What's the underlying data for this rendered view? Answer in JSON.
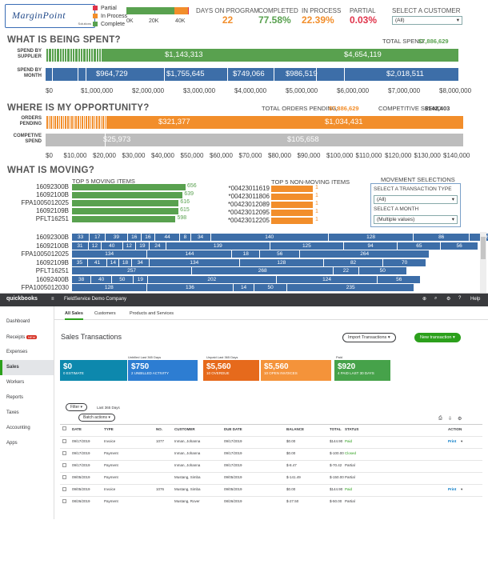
{
  "dashboard": {
    "logo": {
      "text": "MarginPoint",
      "sub": "Solutions"
    },
    "legend": [
      {
        "label": "Partial",
        "color": "#e0334a"
      },
      {
        "label": "In Process",
        "color": "#f28e2b"
      },
      {
        "label": "Complete",
        "color": "#59a14f"
      }
    ],
    "mini_axis": [
      "0K",
      "20K",
      "40K"
    ],
    "mini_progress": {
      "complete": 0.7758,
      "in_process": 0.2239,
      "partial": 0.0003
    },
    "kpis": [
      {
        "label": "DAYS ON PROGRAM",
        "value": "22",
        "color": "#f28e2b"
      },
      {
        "label": "COMPLETED",
        "value": "77.58%",
        "color": "#59a14f"
      },
      {
        "label": "IN PROCESS",
        "value": "22.39%",
        "color": "#f28e2b"
      },
      {
        "label": "PARTIAL",
        "value": "0.03%",
        "color": "#e0334a"
      }
    ],
    "customer_select": {
      "label": "SELECT A CUSTOMER",
      "value": "(All)"
    },
    "spent": {
      "title": "WHAT IS BEING SPENT?",
      "total_label": "TOTAL SPEND:",
      "total_value": "$7,886,629",
      "rows": [
        {
          "label": "SPEND BY SUPPLIER",
          "values": [
            "$1,143,313",
            "$4,654,119"
          ]
        },
        {
          "label": "SPEND BY MONTH",
          "values": [
            "$964,729",
            "$1,755,645",
            "$749,066",
            "$986,519",
            "$2,018,511"
          ]
        }
      ],
      "axis": [
        "$0",
        "$1,000,000",
        "$2,000,000",
        "$3,000,000",
        "$4,000,000",
        "$5,000,000",
        "$6,000,000",
        "$7,000,000",
        "$8,000,000"
      ]
    },
    "opportunity": {
      "title": "WHERE IS MY OPPORTUNITY?",
      "orders_label": "TOTAL ORDERS PENDING:",
      "orders_value": "$7,886,629",
      "competitive_label": "COMPETITIVE SPEND:",
      "competitive_value": "$142,403",
      "rows": [
        {
          "label": "ORDERS PENDING",
          "values": [
            "$321,377",
            "$1,034,431"
          ]
        },
        {
          "label": "COMPETIVE SPEND",
          "values": [
            "$25,973",
            "$105,658"
          ]
        }
      ],
      "axis": [
        "$0",
        "$10,000",
        "$20,000",
        "$30,000",
        "$40,000",
        "$50,000",
        "$60,000",
        "$70,000",
        "$80,000",
        "$90,000",
        "$100,000",
        "$110,000",
        "$120,000",
        "$130,000",
        "$140,000"
      ]
    },
    "moving": {
      "title": "WHAT IS MOVING?",
      "top5_title": "TOP 5 MOVING ITEMS",
      "top5": [
        {
          "item": "16092300B",
          "value": 656
        },
        {
          "item": "16092100B",
          "value": 639
        },
        {
          "item": "FPA1005012025",
          "value": 616
        },
        {
          "item": "16092109B",
          "value": 615
        },
        {
          "item": "PFLT16251",
          "value": 598
        }
      ],
      "nonmoving_title": "TOP 5 NON-MOVING ITEMS",
      "nonmoving": [
        {
          "item": "*00423011619",
          "value": 1
        },
        {
          "item": "*00423011806",
          "value": 1
        },
        {
          "item": "*00423012089",
          "value": 1
        },
        {
          "item": "*00423012095",
          "value": 1
        },
        {
          "item": "*00423012205",
          "value": 1
        }
      ],
      "selections_title": "MOVEMENT SELECTIONS",
      "transaction_label": "SELECT A TRANSACTION TYPE",
      "transaction_value": "(All)",
      "month_label": "SELECT A MONTH",
      "month_value": "(Multiple values)",
      "detail": [
        {
          "item": "16092300B",
          "segments": [
            "33",
            "17",
            "39",
            "16",
            "16",
            "44",
            "8",
            "34",
            "140",
            "128",
            "86",
            "65"
          ]
        },
        {
          "item": "16092100B",
          "segments": [
            "31",
            "12",
            "40",
            "12",
            "19",
            "24",
            "139",
            "125",
            "94",
            "65",
            "56"
          ]
        },
        {
          "item": "FPA1005012025",
          "segments": [
            "134",
            "144",
            "18",
            "56",
            "264"
          ]
        },
        {
          "item": "16092109B",
          "segments": [
            "35",
            "41",
            "14",
            "18",
            "34",
            "134",
            "128",
            "82",
            "70"
          ]
        },
        {
          "item": "PFLT16251",
          "segments": [
            "257",
            "268",
            "22",
            "50"
          ]
        },
        {
          "item": "16092400B",
          "segments": [
            "38",
            "40",
            "50",
            "19",
            "202",
            "124",
            "56"
          ]
        },
        {
          "item": "FPA1005012030",
          "segments": [
            "128",
            "136",
            "14",
            "50",
            "235"
          ]
        }
      ]
    }
  },
  "quickbooks": {
    "brand": "quickbooks",
    "company": "FieldService Demo Company",
    "help": "Help",
    "sidebar": [
      "Dashboard",
      "Receipts",
      "Expenses",
      "Sales",
      "Workers",
      "Reports",
      "Taxes",
      "Accounting",
      "Apps"
    ],
    "receipts_badge": "NEW",
    "tabs": [
      "All Sales",
      "Customers",
      "Products and Services"
    ],
    "page_title": "Sales Transactions",
    "import_button": "Import Transactions",
    "new_button": "New transaction",
    "tile_headers": {
      "unbilled": "Unbilled Last 365 Days",
      "unpaid": "Unpaid Last 365 Days",
      "paid": "Paid"
    },
    "tiles": [
      {
        "value": "$0",
        "caption": "0 ESTIMATE",
        "color": "#0d88ad"
      },
      {
        "value": "$750",
        "caption": "2 UNBILLED ACTIVITY",
        "color": "#2d7dd2"
      },
      {
        "value": "$5,560",
        "caption": "10 OVERDUE",
        "color": "#e66a1c"
      },
      {
        "value": "$5,560",
        "caption": "10 OPEN INVOICES",
        "color": "#f4933a"
      },
      {
        "value": "$920",
        "caption": "4 PAID LAST 30 DAYS",
        "color": "#46a24a"
      }
    ],
    "filter_label": "Filter",
    "filter_range": "Last 365 Days",
    "batch_label": "Batch actions",
    "columns": [
      "DATE",
      "TYPE",
      "NO.",
      "CUSTOMER",
      "DUE DATE",
      "BALANCE",
      "TOTAL",
      "STATUS",
      "ACTION"
    ],
    "rows": [
      {
        "date": "09/17/2019",
        "type": "Invoice",
        "no": "1077",
        "customer": "Inman, Johanna",
        "due": "09/17/2019",
        "balance": "$0.00",
        "total": "$144.90",
        "status": "Paid",
        "action": "Print"
      },
      {
        "date": "09/17/2019",
        "type": "Payment",
        "no": "",
        "customer": "Inman, Johanna",
        "due": "09/17/2019",
        "balance": "$0.00",
        "total": "$-100.00",
        "status": "Closed",
        "action": ""
      },
      {
        "date": "09/17/2019",
        "type": "Payment",
        "no": "",
        "customer": "Inman, Johanna",
        "due": "09/17/2019",
        "balance": "$-8.47",
        "total": "$-70.42",
        "status": "Partial",
        "action": ""
      },
      {
        "date": "09/05/2019",
        "type": "Payment",
        "no": "",
        "customer": "Mustang, Simba",
        "due": "09/05/2019",
        "balance": "$-141.49",
        "total": "$-150.00",
        "status": "Partial",
        "action": ""
      },
      {
        "date": "09/05/2019",
        "type": "Invoice",
        "no": "1076",
        "customer": "Mustang, Simba",
        "due": "09/05/2019",
        "balance": "$0.00",
        "total": "$144.90",
        "status": "Paid",
        "action": "Print"
      },
      {
        "date": "08/26/2019",
        "type": "Payment",
        "no": "",
        "customer": "Mustang, Rover",
        "due": "08/26/2019",
        "balance": "$-27.50",
        "total": "$-50.00",
        "status": "Partial",
        "action": ""
      }
    ]
  }
}
